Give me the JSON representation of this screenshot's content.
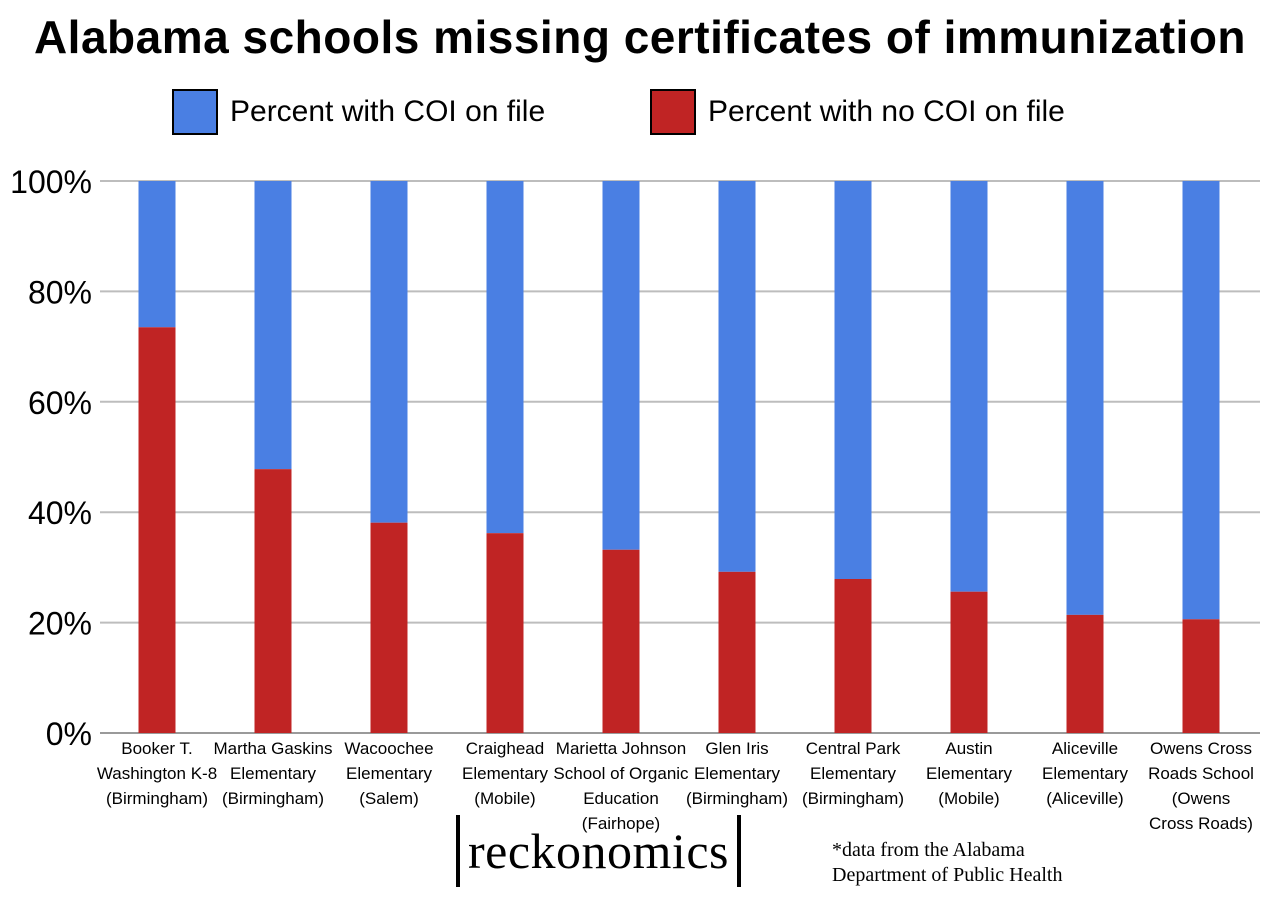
{
  "title": "Alabama schools missing certificates of immunization",
  "legend": [
    {
      "label": "Percent with COI on file",
      "color": "#4a7fe3"
    },
    {
      "label": "Percent with no COI on file",
      "color": "#c02424"
    }
  ],
  "branding": {
    "logo": "reckonomics"
  },
  "source_note": {
    "line1": "*data from the Alabama",
    "line2": "Department of Public Health"
  },
  "chart_data": {
    "type": "bar",
    "stacked": true,
    "grid": true,
    "ylim": [
      0,
      100
    ],
    "yticks": [
      "0%",
      "20%",
      "40%",
      "60%",
      "80%",
      "100%"
    ],
    "categories": [
      [
        "Booker T.",
        "Washington K-8",
        "(Birmingham)"
      ],
      [
        "Martha Gaskins",
        "Elementary",
        "(Birmingham)"
      ],
      [
        "Wacoochee",
        "Elementary",
        "(Salem)"
      ],
      [
        "Craighead",
        "Elementary",
        "(Mobile)"
      ],
      [
        "Marietta Johnson",
        "School of Organic",
        "Education",
        "(Fairhope)"
      ],
      [
        "Glen Iris",
        "Elementary",
        "(Birmingham)"
      ],
      [
        "Central Park",
        "Elementary",
        "(Birmingham)"
      ],
      [
        "Austin",
        "Elementary",
        "(Mobile)"
      ],
      [
        "Aliceville",
        "Elementary",
        "(Aliceville)"
      ],
      [
        "Owens Cross",
        "Roads School",
        "(Owens",
        "Cross Roads)"
      ]
    ],
    "series": [
      {
        "name": "Percent with no COI on file",
        "color": "#c02424",
        "values": [
          73.5,
          47.8,
          38.1,
          36.2,
          33.2,
          29.2,
          27.9,
          25.6,
          21.4,
          20.6
        ]
      },
      {
        "name": "Percent with COI on file",
        "color": "#4a7fe3",
        "values": [
          26.5,
          52.2,
          61.9,
          63.8,
          66.8,
          70.8,
          72.1,
          74.4,
          78.6,
          79.4
        ]
      }
    ]
  }
}
